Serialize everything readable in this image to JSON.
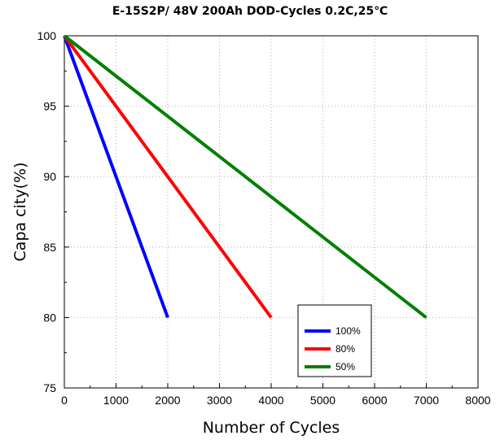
{
  "chart_data": {
    "type": "line",
    "title": "E-15S2P/ 48V 200Ah DOD-Cycles 0.2C,25℃",
    "xlabel": "Number of Cycles",
    "ylabel": "Capa city(%)",
    "xlim": [
      0,
      8000
    ],
    "ylim": [
      75,
      100
    ],
    "xticks": [
      0,
      1000,
      2000,
      3000,
      4000,
      5000,
      6000,
      7000,
      8000
    ],
    "yticks": [
      75,
      80,
      85,
      90,
      95,
      100
    ],
    "grid": true,
    "legend_position": "bottom-right",
    "series": [
      {
        "name": "100%",
        "color": "#0000ff",
        "x": [
          0,
          2000
        ],
        "y": [
          100,
          80
        ]
      },
      {
        "name": "80%",
        "color": "#ff0000",
        "x": [
          0,
          4000
        ],
        "y": [
          100,
          80
        ]
      },
      {
        "name": "50%",
        "color": "#008000",
        "x": [
          0,
          7000
        ],
        "y": [
          100,
          80
        ]
      }
    ]
  }
}
